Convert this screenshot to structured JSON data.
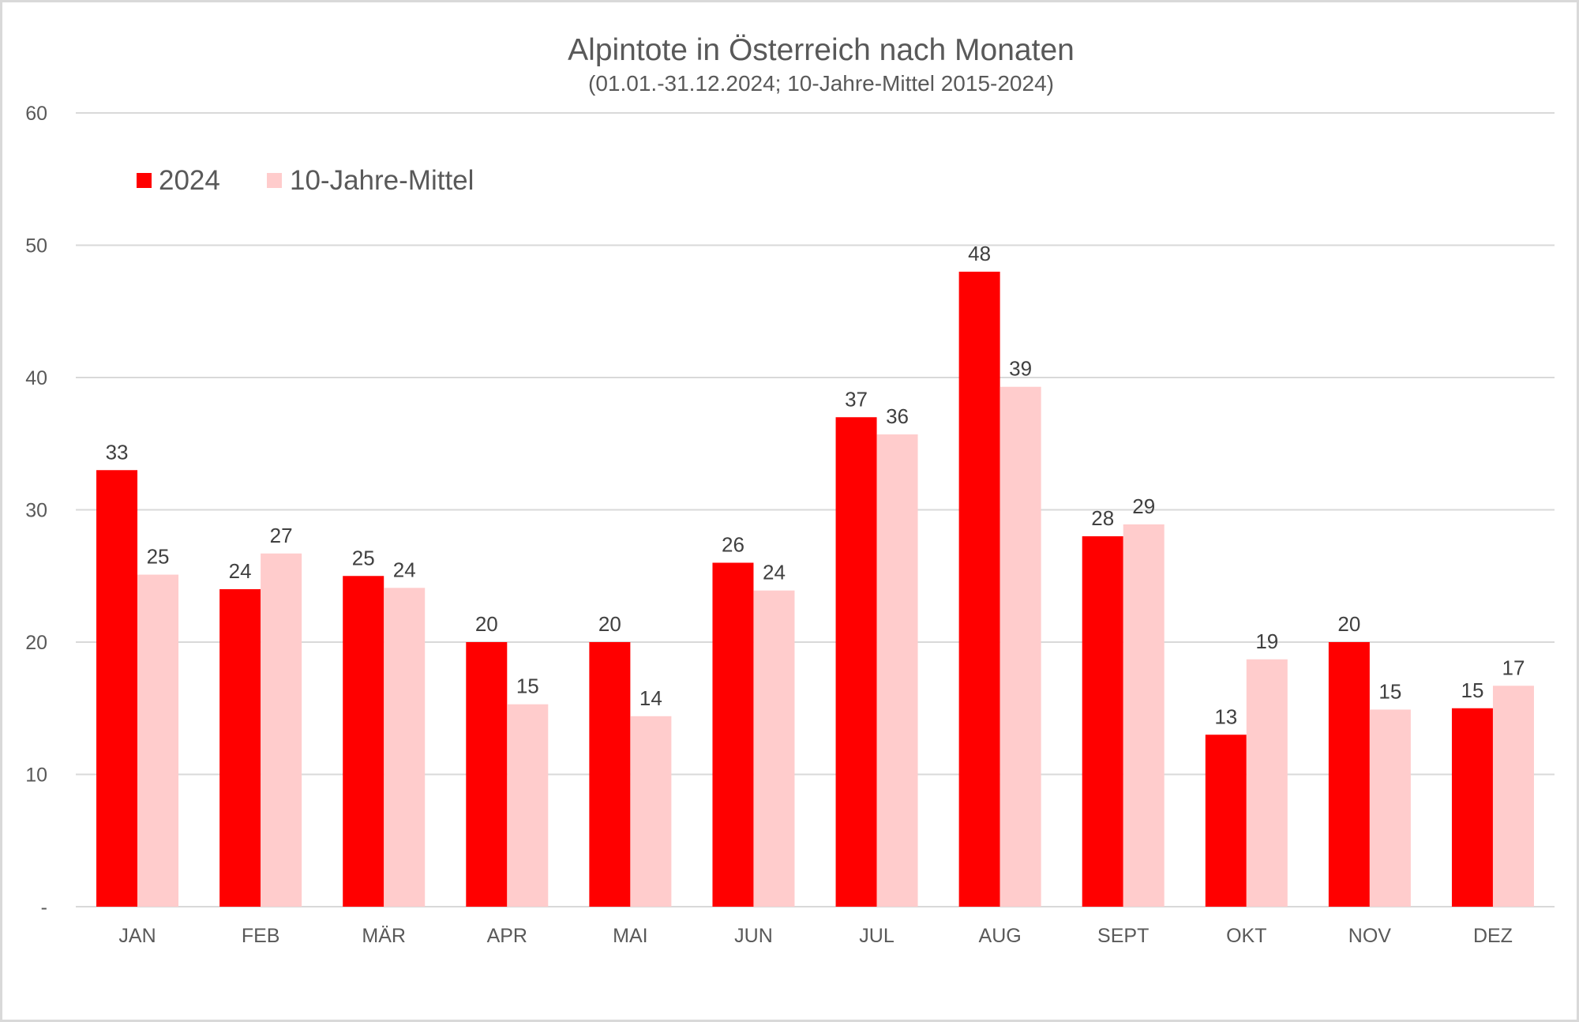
{
  "chart_data": {
    "type": "bar",
    "title": "Alpintote in Österreich nach Monaten",
    "subtitle": "(01.01.-31.12.2024; 10-Jahre-Mittel 2015-2024)",
    "xlabel": "",
    "ylabel": "",
    "ylim": [
      0,
      60
    ],
    "yticks": [
      0,
      10,
      20,
      30,
      40,
      50,
      60
    ],
    "ytick_labels": [
      "-",
      "10",
      "20",
      "30",
      "40",
      "50",
      "60"
    ],
    "grid": true,
    "legend_position": "top-left",
    "categories": [
      "JAN",
      "FEB",
      "MÄR",
      "APR",
      "MAI",
      "JUN",
      "JUL",
      "AUG",
      "SEPT",
      "OKT",
      "NOV",
      "DEZ"
    ],
    "series": [
      {
        "name": "2024",
        "color": "#ff0000",
        "values": [
          33,
          24,
          25,
          20,
          20,
          26,
          37,
          48,
          28,
          13,
          20,
          15
        ],
        "labels": [
          "33",
          "24",
          "25",
          "20",
          "20",
          "26",
          "37",
          "48",
          "28",
          "13",
          "20",
          "15"
        ]
      },
      {
        "name": "10-Jahre-Mittel",
        "color": "#ffcccc",
        "values": [
          25.1,
          26.7,
          24.1,
          15.3,
          14.4,
          23.9,
          35.7,
          39.3,
          28.9,
          18.7,
          14.9,
          16.7
        ],
        "labels": [
          "25",
          "27",
          "24",
          "15",
          "14",
          "24",
          "36",
          "39",
          "29",
          "19",
          "15",
          "17"
        ]
      }
    ]
  }
}
